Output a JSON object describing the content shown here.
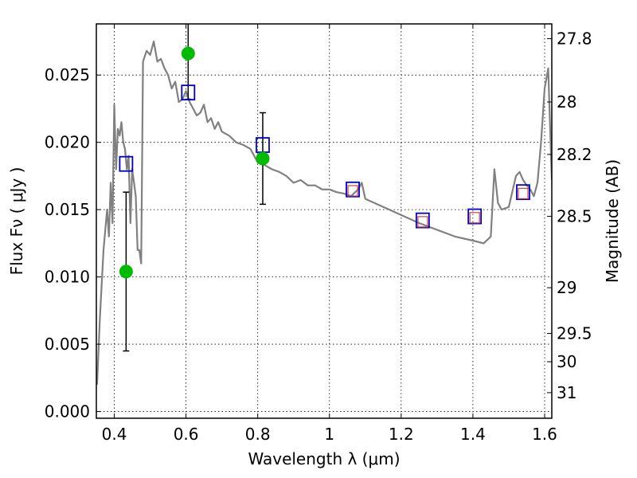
{
  "chart_data": {
    "type": "scatter",
    "title": "",
    "xlabel": "Wavelength  λ (μm)",
    "ylabel": "Flux  Fν  ( μJy )",
    "ylabel_right": "Magnitude (AB)",
    "xlim": [
      0.35,
      1.62
    ],
    "ylim": [
      -0.0005,
      0.0288
    ],
    "x_ticks": [
      0.4,
      0.6,
      0.8,
      1.0,
      1.2,
      1.4,
      1.6
    ],
    "x_tick_labels": [
      "0.4",
      "0.6",
      "0.8",
      "1",
      "1.2",
      "1.4",
      "1.6"
    ],
    "y_ticks": [
      0.0,
      0.005,
      0.01,
      0.015,
      0.02,
      0.025
    ],
    "y_tick_labels": [
      "0.000",
      "0.005",
      "0.010",
      "0.015",
      "0.020",
      "0.025"
    ],
    "right_ticks": [
      {
        "label": "27.8",
        "flux": 0.0277
      },
      {
        "label": "28",
        "flux": 0.023
      },
      {
        "label": "28.2",
        "flux": 0.0191
      },
      {
        "label": "28.5",
        "flux": 0.0145
      },
      {
        "label": "29",
        "flux": 0.0092
      },
      {
        "label": "29.5",
        "flux": 0.0058
      },
      {
        "label": "30",
        "flux": 0.0037
      },
      {
        "label": "31",
        "flux": 0.0014
      }
    ],
    "grid": true,
    "colors": {
      "template": "#808080",
      "observed": "#00bb00",
      "model_box": "#0000cc",
      "model_inner": "#d04040",
      "errorbar": "#000000"
    },
    "series": [
      {
        "type": "line",
        "x": [
          0.352,
          0.36,
          0.37,
          0.38,
          0.385,
          0.39,
          0.395,
          0.4,
          0.405,
          0.41,
          0.415,
          0.42,
          0.425,
          0.43,
          0.435,
          0.44,
          0.445,
          0.45,
          0.455,
          0.46,
          0.465,
          0.47,
          0.475,
          0.48,
          0.49,
          0.5,
          0.51,
          0.52,
          0.53,
          0.54,
          0.55,
          0.56,
          0.57,
          0.58,
          0.59,
          0.6,
          0.61,
          0.62,
          0.63,
          0.64,
          0.65,
          0.66,
          0.67,
          0.68,
          0.69,
          0.7,
          0.72,
          0.74,
          0.76,
          0.78,
          0.8,
          0.82,
          0.84,
          0.86,
          0.88,
          0.9,
          0.92,
          0.94,
          0.96,
          0.98,
          1.0,
          1.02,
          1.04,
          1.06,
          1.08,
          1.09,
          1.1,
          1.15,
          1.2,
          1.25,
          1.3,
          1.35,
          1.4,
          1.43,
          1.45,
          1.46,
          1.47,
          1.48,
          1.5,
          1.52,
          1.53,
          1.54,
          1.55,
          1.56,
          1.57,
          1.58,
          1.59,
          1.6,
          1.61,
          1.62
        ],
        "y": [
          0.002,
          0.007,
          0.012,
          0.015,
          0.013,
          0.017,
          0.014,
          0.0228,
          0.018,
          0.021,
          0.0205,
          0.0215,
          0.02,
          0.0195,
          0.018,
          0.019,
          0.014,
          0.018,
          0.017,
          0.016,
          0.012,
          0.012,
          0.011,
          0.026,
          0.0268,
          0.0265,
          0.0275,
          0.026,
          0.0262,
          0.0255,
          0.025,
          0.024,
          0.0245,
          0.023,
          0.0232,
          0.0238,
          0.023,
          0.0225,
          0.022,
          0.0222,
          0.0228,
          0.0215,
          0.0218,
          0.021,
          0.0215,
          0.0208,
          0.0205,
          0.02,
          0.0198,
          0.0195,
          0.0185,
          0.0183,
          0.018,
          0.0178,
          0.0175,
          0.017,
          0.0172,
          0.0168,
          0.0168,
          0.0165,
          0.0165,
          0.0163,
          0.0162,
          0.016,
          0.0165,
          0.017,
          0.0158,
          0.0152,
          0.0146,
          0.014,
          0.0135,
          0.013,
          0.0127,
          0.0125,
          0.013,
          0.018,
          0.0155,
          0.015,
          0.0152,
          0.0175,
          0.0178,
          0.0172,
          0.0168,
          0.0165,
          0.016,
          0.017,
          0.02,
          0.024,
          0.0255,
          0.0172
        ]
      },
      {
        "type": "scatter",
        "points": [
          {
            "x": 0.433,
            "y": 0.0104,
            "err": [
              0.0045,
              0.0163
            ]
          },
          {
            "x": 0.606,
            "y": 0.0266,
            "err": [
              0.0232,
              0.03
            ]
          },
          {
            "x": 0.814,
            "y": 0.0188,
            "err": [
              0.0154,
              0.0222
            ]
          }
        ]
      },
      {
        "type": "scatter",
        "points": [
          {
            "x": 0.433,
            "y": 0.0184
          },
          {
            "x": 0.606,
            "y": 0.0237
          },
          {
            "x": 0.814,
            "y": 0.0198
          },
          {
            "x": 1.065,
            "y": 0.0165
          },
          {
            "x": 1.26,
            "y": 0.0142
          },
          {
            "x": 1.405,
            "y": 0.0145
          },
          {
            "x": 1.54,
            "y": 0.0163
          }
        ]
      },
      {
        "type": "scatter",
        "points": [
          {
            "x": 1.065,
            "y": 0.0164
          },
          {
            "x": 1.26,
            "y": 0.0141
          },
          {
            "x": 1.405,
            "y": 0.0144
          },
          {
            "x": 1.54,
            "y": 0.0162
          }
        ]
      }
    ]
  }
}
